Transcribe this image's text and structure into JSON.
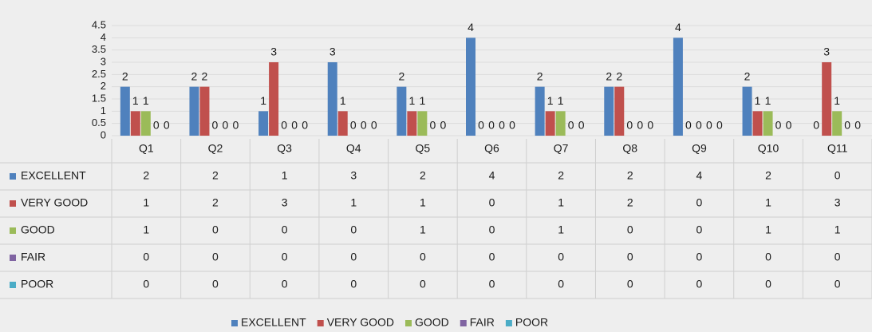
{
  "chart_data": {
    "type": "bar",
    "categories": [
      "Q1",
      "Q2",
      "Q3",
      "Q4",
      "Q5",
      "Q6",
      "Q7",
      "Q8",
      "Q9",
      "Q10",
      "Q11"
    ],
    "series": [
      {
        "name": "EXCELLENT",
        "color": "#4f81bd",
        "values": [
          2,
          2,
          1,
          3,
          2,
          4,
          2,
          2,
          4,
          2,
          0
        ]
      },
      {
        "name": "VERY GOOD",
        "color": "#c0504d",
        "values": [
          1,
          2,
          3,
          1,
          1,
          0,
          1,
          2,
          0,
          1,
          3
        ]
      },
      {
        "name": "GOOD",
        "color": "#9bbb59",
        "values": [
          1,
          0,
          0,
          0,
          1,
          0,
          1,
          0,
          0,
          1,
          1
        ]
      },
      {
        "name": "FAIR",
        "color": "#8064a2",
        "values": [
          0,
          0,
          0,
          0,
          0,
          0,
          0,
          0,
          0,
          0,
          0
        ]
      },
      {
        "name": "POOR",
        "color": "#4bacc6",
        "values": [
          0,
          0,
          0,
          0,
          0,
          0,
          0,
          0,
          0,
          0,
          0
        ]
      }
    ],
    "ylim": [
      0,
      4.5
    ],
    "yticks": [
      0,
      0.5,
      1,
      1.5,
      2,
      2.5,
      3,
      3.5,
      4,
      4.5
    ],
    "grid": true,
    "data_table": true,
    "legend": "bottom"
  }
}
